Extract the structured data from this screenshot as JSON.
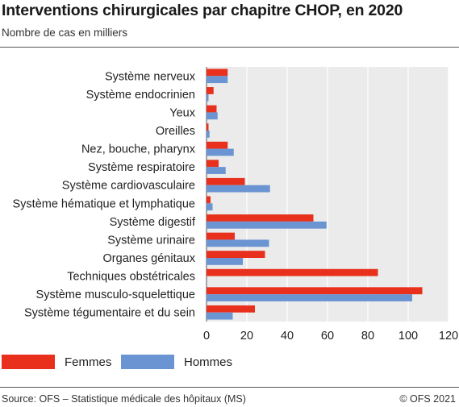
{
  "title": "Interventions chirurgicales par chapitre CHOP, en 2020",
  "subtitle": "Nombre de cas en milliers",
  "footer": {
    "source": "Source: OFS – Statistique médicale des hôpitaux (MS)",
    "copyright": "© OFS 2021"
  },
  "colors": {
    "femmes": "#e8301c",
    "hommes": "#6a95d2",
    "plot_background": "#ebebeb",
    "grid": "#ffffff"
  },
  "chart_data": {
    "type": "bar",
    "orientation": "horizontal",
    "title": "Interventions chirurgicales par chapitre CHOP, en 2020",
    "subtitle": "Nombre de cas en milliers",
    "categories": [
      "Système nerveux",
      "Système endocrinien",
      "Yeux",
      "Oreilles",
      "Nez, bouche, pharynx",
      "Système respiratoire",
      "Système cardiovasculaire",
      "Système hématique et lymphatique",
      "Système digestif",
      "Système urinaire",
      "Organes génitaux",
      "Techniques obstétricales",
      "Système musculo-squelettique",
      "Système tégumentaire et du sein"
    ],
    "series": [
      {
        "name": "Femmes",
        "color": "#e8301c",
        "values": [
          10.5,
          3.5,
          5,
          1,
          10.5,
          6,
          19,
          2,
          53,
          14,
          29,
          85,
          107,
          24
        ]
      },
      {
        "name": "Hommes",
        "color": "#6a95d2",
        "values": [
          10.5,
          1,
          5.5,
          1.5,
          13.5,
          9.5,
          31.5,
          3,
          59.5,
          31,
          18,
          0,
          102,
          13
        ]
      }
    ],
    "xlim": [
      0,
      120
    ],
    "xticks": [
      0,
      20,
      40,
      60,
      80,
      100,
      120
    ],
    "grid": true,
    "legend_position": "bottom-left"
  }
}
